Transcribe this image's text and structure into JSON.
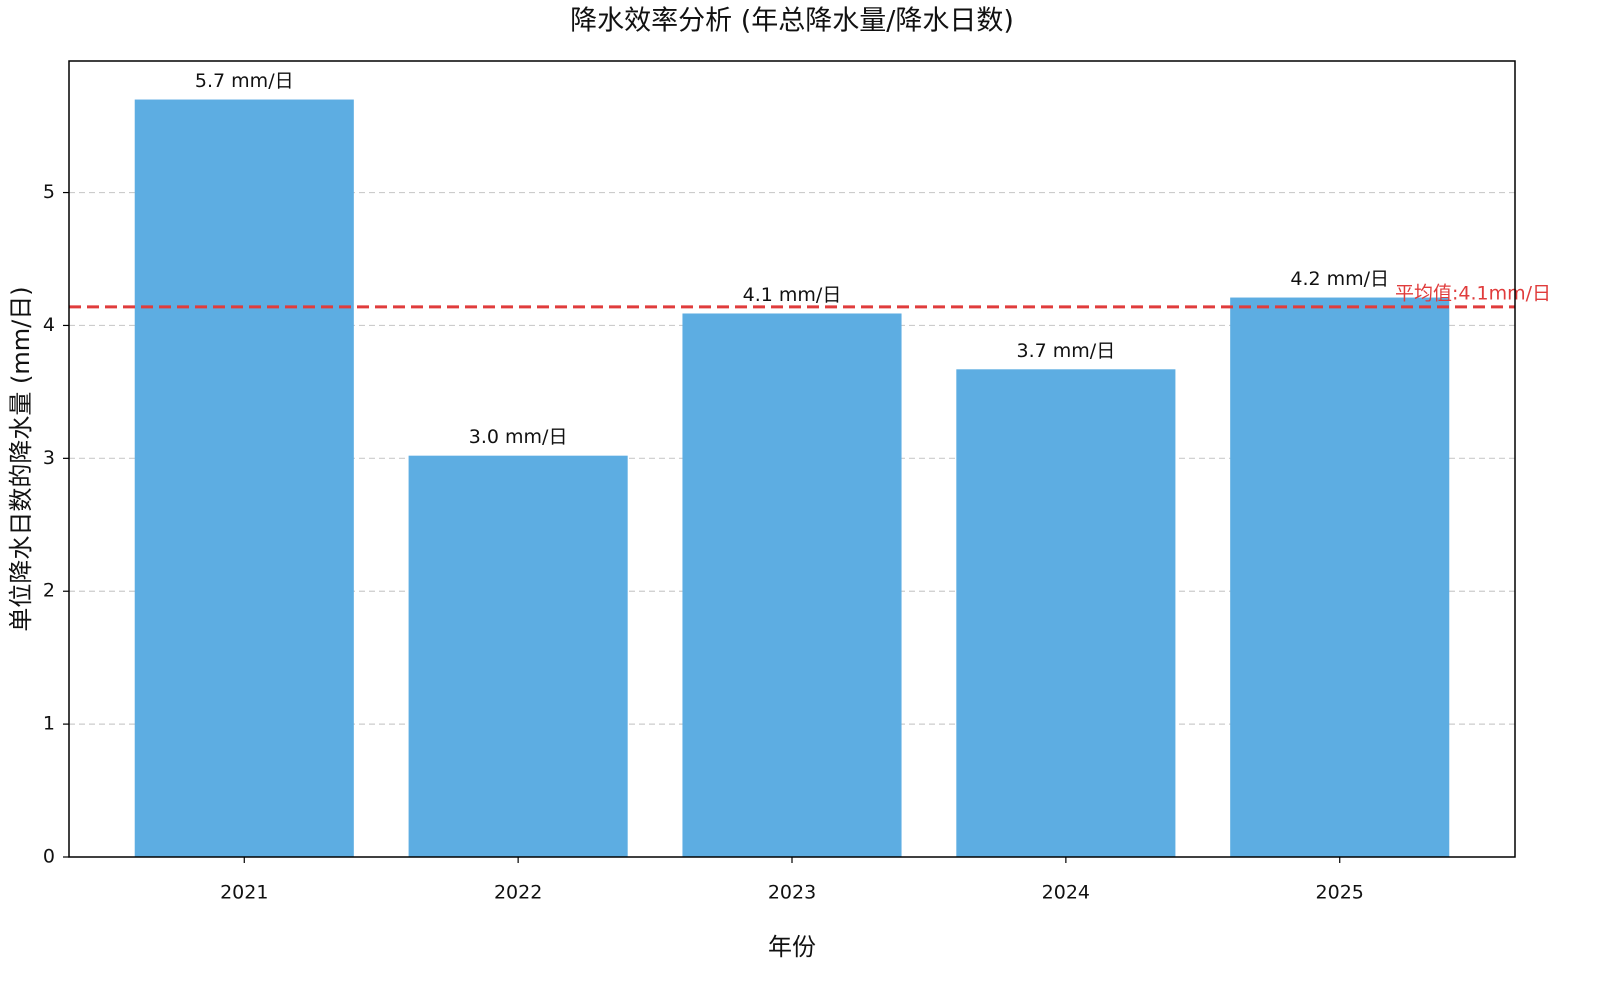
{
  "chart_data": {
    "type": "bar",
    "title": "降水效率分析 (年总降水量/降水日数)",
    "x_label": "年份",
    "y_label": "单位降水日数的降水量 (mm/日)",
    "categories": [
      "2021",
      "2022",
      "2023",
      "2024",
      "2025"
    ],
    "values": [
      5.7,
      3.02,
      4.09,
      3.67,
      4.21
    ],
    "value_labels": [
      "5.7 mm/日",
      "3.0 mm/日",
      "4.1 mm/日",
      "3.7 mm/日",
      "4.2 mm/日"
    ],
    "color": "#5dade2",
    "ylim": [
      0,
      5.99
    ],
    "yticks": [
      0,
      1,
      2,
      3,
      4,
      5
    ],
    "grid": true,
    "mean_line": {
      "value": 4.14,
      "label": "平均值:4.1mm/日",
      "color": "#e03c3c"
    }
  }
}
